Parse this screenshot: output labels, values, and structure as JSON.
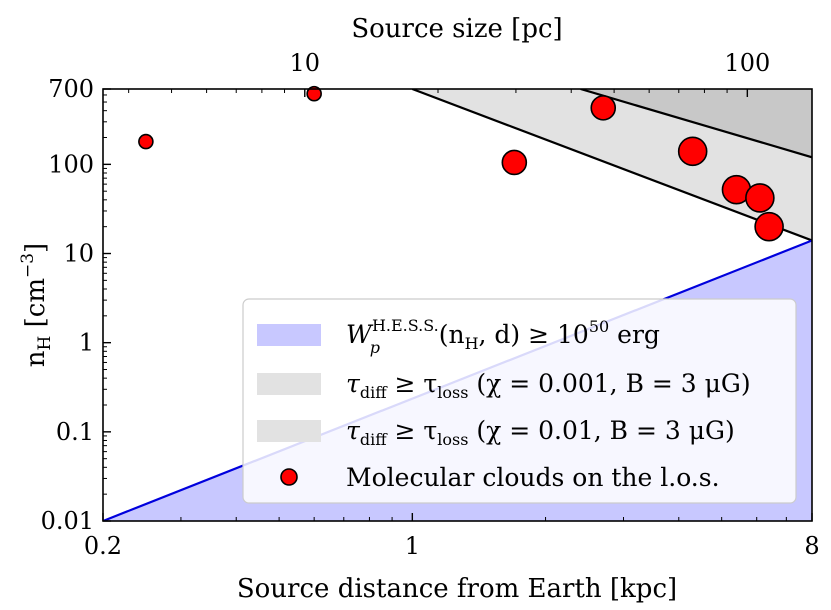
{
  "chart_data": {
    "type": "scatter",
    "xlabel": "Source distance from Earth [kpc]",
    "ylabel_main": "n",
    "ylabel_sub": "H",
    "ylabel_unit": "[cm",
    "ylabel_exp": "−3",
    "ylabel_close": "]",
    "x2label": "Source size [pc]",
    "x_scale": "log",
    "y_scale": "log",
    "xlim": [
      0.2,
      8
    ],
    "ylim": [
      0.01,
      700
    ],
    "x2lim": [
      3.5,
      140
    ],
    "x_ticks": [
      {
        "value": 0.2,
        "label": "0.2"
      },
      {
        "value": 1,
        "label": "1"
      },
      {
        "value": 8,
        "label": "8"
      }
    ],
    "x2_ticks": [
      {
        "value": 10,
        "label": "10"
      },
      {
        "value": 100,
        "label": "100"
      }
    ],
    "y_ticks": [
      {
        "value": 0.01,
        "label": "0.01"
      },
      {
        "value": 0.1,
        "label": "0.1"
      },
      {
        "value": 1,
        "label": "1"
      },
      {
        "value": 10,
        "label": "10"
      },
      {
        "value": 100,
        "label": "100"
      },
      {
        "value": 700,
        "label": "700"
      }
    ],
    "colors": {
      "hess_fill": "#c8c8ff",
      "hess_line": "#0000dd",
      "loss_fill_light": "#e2e2e2",
      "loss_fill_dark": "#c8c8c8",
      "loss_line": "#000000",
      "cloud_fill": "#ff0000",
      "cloud_edge": "#000000",
      "legend_bg": "#ffffff",
      "legend_edge": "#cccccc"
    },
    "hess_line": {
      "x": [
        0.2,
        8
      ],
      "y": [
        0.01,
        14
      ]
    },
    "loss_line_chi_0001": {
      "x": [
        1,
        8
      ],
      "y": [
        700,
        14
      ]
    },
    "loss_line_chi_001": {
      "x": [
        2.4,
        8
      ],
      "y": [
        700,
        120
      ]
    },
    "clouds": [
      {
        "x": 0.25,
        "y": 180,
        "size": 1
      },
      {
        "x": 0.6,
        "y": 620,
        "size": 1
      },
      {
        "x": 1.7,
        "y": 105,
        "size": 2
      },
      {
        "x": 2.7,
        "y": 430,
        "size": 2
      },
      {
        "x": 4.3,
        "y": 140,
        "size": 3
      },
      {
        "x": 5.4,
        "y": 52,
        "size": 3
      },
      {
        "x": 6.1,
        "y": 42,
        "size": 3
      },
      {
        "x": 6.4,
        "y": 20,
        "size": 3
      }
    ],
    "legend": {
      "position": "lower-right",
      "entries": [
        {
          "label_main": "W",
          "label_sub": "p",
          "label_sup": "H.E.S.S.",
          "label_rest": "(n",
          "label_rest_sub": "H",
          "label_rest2": ", d) ≥ 10",
          "label_exp": "50",
          "label_tail": " erg"
        },
        {
          "label_main": "τ",
          "label_sub": "diff",
          "label_rel": " ≥ τ",
          "label_sub2": "loss",
          "label_tail": " (χ = 0.001, B = 3 μG)"
        },
        {
          "label_main": "τ",
          "label_sub": "diff",
          "label_rel": " ≥ τ",
          "label_sub2": "loss",
          "label_tail": " (χ = 0.01, B = 3 μG)"
        },
        {
          "label_main": "Molecular clouds on the l.o.s."
        }
      ]
    }
  }
}
